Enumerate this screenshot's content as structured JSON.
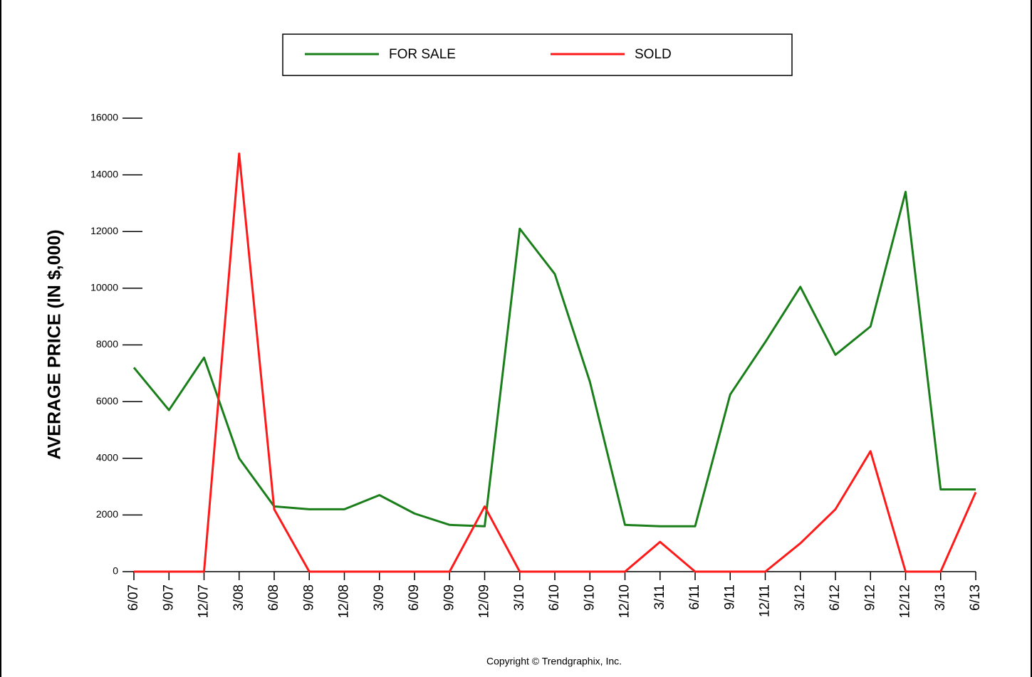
{
  "chart_data": {
    "type": "line",
    "y_label": "AVERAGE PRICE (IN $,000)",
    "footer": "Copyright © Trendgraphix, Inc.",
    "categories": [
      "6/07",
      "9/07",
      "12/07",
      "3/08",
      "6/08",
      "9/08",
      "12/08",
      "3/09",
      "6/09",
      "9/09",
      "12/09",
      "3/10",
      "6/10",
      "9/10",
      "12/10",
      "3/11",
      "6/11",
      "9/11",
      "12/11",
      "3/12",
      "6/12",
      "9/12",
      "12/12",
      "3/13",
      "6/13"
    ],
    "series": [
      {
        "name": "FOR SALE",
        "color": "#1a7f1a",
        "values": [
          7200,
          5700,
          7550,
          4000,
          2300,
          2200,
          2200,
          2700,
          2050,
          1650,
          1600,
          12100,
          10500,
          6700,
          1650,
          1600,
          1600,
          6250,
          8100,
          10050,
          7650,
          8650,
          13400,
          2900,
          2900
        ]
      },
      {
        "name": "SOLD",
        "color": "#ff1a1a",
        "values": [
          0,
          0,
          0,
          14750,
          2200,
          0,
          0,
          0,
          0,
          0,
          2300,
          0,
          0,
          0,
          0,
          1050,
          0,
          0,
          0,
          1000,
          2200,
          4250,
          0,
          0,
          2800
        ]
      }
    ],
    "ylim": [
      0,
      16000
    ],
    "yticks": [
      0,
      2000,
      4000,
      6000,
      8000,
      10000,
      12000,
      14000,
      16000
    ],
    "legend": "top"
  }
}
